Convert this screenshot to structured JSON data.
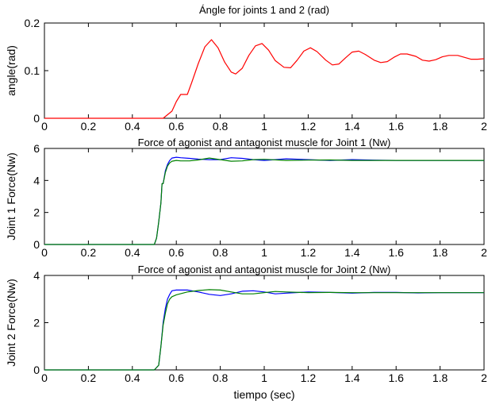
{
  "chart_data": [
    {
      "type": "line",
      "title": "Ángle for joints 1 and 2 (rad)",
      "xlabel": "",
      "ylabel": "angle(rad)",
      "xlim": [
        0,
        2
      ],
      "ylim": [
        0,
        0.2
      ],
      "xticks": [
        "0",
        "0.2",
        "0.4",
        "0.6",
        "0.8",
        "1",
        "1.2",
        "1.4",
        "1.6",
        "1.8",
        "2"
      ],
      "yticks": [
        "0",
        "0.1",
        "0.2"
      ],
      "grid": false,
      "series": [
        {
          "color": "#ff0000",
          "x": [
            0,
            0.5,
            0.54,
            0.58,
            0.6,
            0.62,
            0.65,
            0.67,
            0.7,
            0.73,
            0.76,
            0.79,
            0.82,
            0.85,
            0.87,
            0.9,
            0.93,
            0.96,
            0.99,
            1.02,
            1.05,
            1.09,
            1.12,
            1.15,
            1.18,
            1.21,
            1.24,
            1.28,
            1.31,
            1.34,
            1.37,
            1.4,
            1.43,
            1.46,
            1.5,
            1.53,
            1.56,
            1.59,
            1.62,
            1.65,
            1.69,
            1.72,
            1.75,
            1.78,
            1.81,
            1.84,
            1.88,
            1.91,
            1.94,
            1.97,
            2.0
          ],
          "y": [
            0,
            0,
            0,
            0.015,
            0.035,
            0.05,
            0.05,
            0.075,
            0.115,
            0.15,
            0.165,
            0.148,
            0.118,
            0.097,
            0.093,
            0.105,
            0.132,
            0.152,
            0.157,
            0.143,
            0.121,
            0.107,
            0.106,
            0.122,
            0.141,
            0.148,
            0.14,
            0.122,
            0.112,
            0.114,
            0.127,
            0.139,
            0.141,
            0.134,
            0.122,
            0.117,
            0.119,
            0.128,
            0.135,
            0.135,
            0.13,
            0.122,
            0.12,
            0.123,
            0.129,
            0.132,
            0.132,
            0.128,
            0.124,
            0.124,
            0.125
          ]
        }
      ]
    },
    {
      "type": "line",
      "title": "Force of agonist and antagonist muscle for Joint 1 (Nw)",
      "xlabel": "",
      "ylabel": "Joint 1 Force(Nw)",
      "xlim": [
        0,
        2
      ],
      "ylim": [
        0,
        6
      ],
      "xticks": [
        "0",
        "0.2",
        "0.4",
        "0.6",
        "0.8",
        "1",
        "1.2",
        "1.4",
        "1.6",
        "1.8",
        "2"
      ],
      "yticks": [
        "0",
        "2",
        "4",
        "6"
      ],
      "grid": false,
      "series": [
        {
          "color": "#0000ff",
          "x": [
            0,
            0.5,
            0.51,
            0.52,
            0.53,
            0.535,
            0.54,
            0.55,
            0.56,
            0.57,
            0.58,
            0.6,
            0.62,
            0.66,
            0.7,
            0.75,
            0.8,
            0.85,
            0.9,
            0.95,
            1.0,
            1.1,
            1.2,
            1.3,
            1.4,
            1.5,
            1.6,
            1.7,
            1.8,
            1.9,
            2.0
          ],
          "y": [
            0,
            0,
            0.4,
            1.4,
            2.6,
            3.8,
            3.8,
            4.6,
            5.0,
            5.25,
            5.4,
            5.45,
            5.42,
            5.38,
            5.33,
            5.3,
            5.3,
            5.42,
            5.38,
            5.3,
            5.25,
            5.35,
            5.3,
            5.25,
            5.3,
            5.27,
            5.25,
            5.25,
            5.25,
            5.25,
            5.25
          ]
        },
        {
          "color": "#008000",
          "x": [
            0,
            0.5,
            0.51,
            0.52,
            0.53,
            0.535,
            0.54,
            0.55,
            0.56,
            0.57,
            0.58,
            0.6,
            0.62,
            0.66,
            0.7,
            0.75,
            0.8,
            0.85,
            0.9,
            0.95,
            1.0,
            1.1,
            1.2,
            1.3,
            1.4,
            1.5,
            1.6,
            1.7,
            1.8,
            1.9,
            2.0
          ],
          "y": [
            0,
            0,
            0.4,
            1.4,
            2.6,
            3.8,
            3.8,
            4.5,
            4.9,
            5.1,
            5.2,
            5.25,
            5.22,
            5.22,
            5.28,
            5.4,
            5.3,
            5.2,
            5.22,
            5.3,
            5.32,
            5.25,
            5.27,
            5.28,
            5.25,
            5.25,
            5.25,
            5.25,
            5.25,
            5.25,
            5.25
          ]
        }
      ]
    },
    {
      "type": "line",
      "title": "Force of agonist and antagonist muscle for Joint 2 (Nw)",
      "xlabel": "tiempo (sec)",
      "ylabel": "Joint 2 Force(Nw)",
      "xlim": [
        0,
        2
      ],
      "ylim": [
        0,
        4
      ],
      "xticks": [
        "0",
        "0.2",
        "0.4",
        "0.6",
        "0.8",
        "1",
        "1.2",
        "1.4",
        "1.6",
        "1.8",
        "2"
      ],
      "yticks": [
        "0",
        "2",
        "4"
      ],
      "grid": false,
      "series": [
        {
          "color": "#0000ff",
          "x": [
            0,
            0.5,
            0.52,
            0.53,
            0.54,
            0.55,
            0.56,
            0.57,
            0.58,
            0.6,
            0.65,
            0.7,
            0.75,
            0.8,
            0.85,
            0.9,
            0.95,
            1.0,
            1.05,
            1.1,
            1.2,
            1.3,
            1.4,
            1.5,
            1.6,
            1.7,
            1.8,
            1.9,
            2.0
          ],
          "y": [
            0,
            0,
            0.2,
            1.0,
            2.0,
            2.6,
            3.0,
            3.2,
            3.35,
            3.38,
            3.38,
            3.3,
            3.2,
            3.15,
            3.22,
            3.33,
            3.35,
            3.3,
            3.22,
            3.25,
            3.3,
            3.28,
            3.25,
            3.28,
            3.28,
            3.26,
            3.27,
            3.27,
            3.27
          ]
        },
        {
          "color": "#008000",
          "x": [
            0,
            0.5,
            0.52,
            0.53,
            0.54,
            0.55,
            0.56,
            0.57,
            0.58,
            0.6,
            0.65,
            0.7,
            0.75,
            0.8,
            0.85,
            0.9,
            0.95,
            1.0,
            1.05,
            1.1,
            1.2,
            1.3,
            1.4,
            1.5,
            1.6,
            1.7,
            1.8,
            1.9,
            2.0
          ],
          "y": [
            0,
            0,
            0.2,
            1.0,
            1.9,
            2.4,
            2.8,
            3.0,
            3.1,
            3.18,
            3.3,
            3.36,
            3.4,
            3.38,
            3.3,
            3.22,
            3.22,
            3.27,
            3.32,
            3.3,
            3.27,
            3.28,
            3.27,
            3.27,
            3.27,
            3.27,
            3.27,
            3.27,
            3.27
          ]
        }
      ]
    }
  ]
}
